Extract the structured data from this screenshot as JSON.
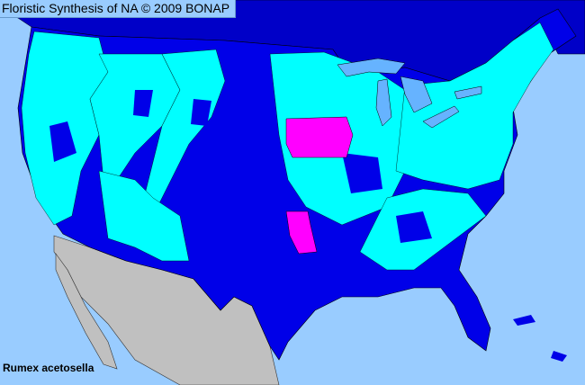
{
  "title": "Floristic Synthesis of NA © 2009 BONAP",
  "species": "Rumex acetosella",
  "colors": {
    "ocean": "#99ccff",
    "canada": "#0000c8",
    "mexico": "#c0c0c0",
    "native_present": "#00ffff",
    "native_absent_in_state": "#0000e8",
    "noxious_or_rare": "#ff00ff",
    "lakes": "#66b3ff"
  }
}
